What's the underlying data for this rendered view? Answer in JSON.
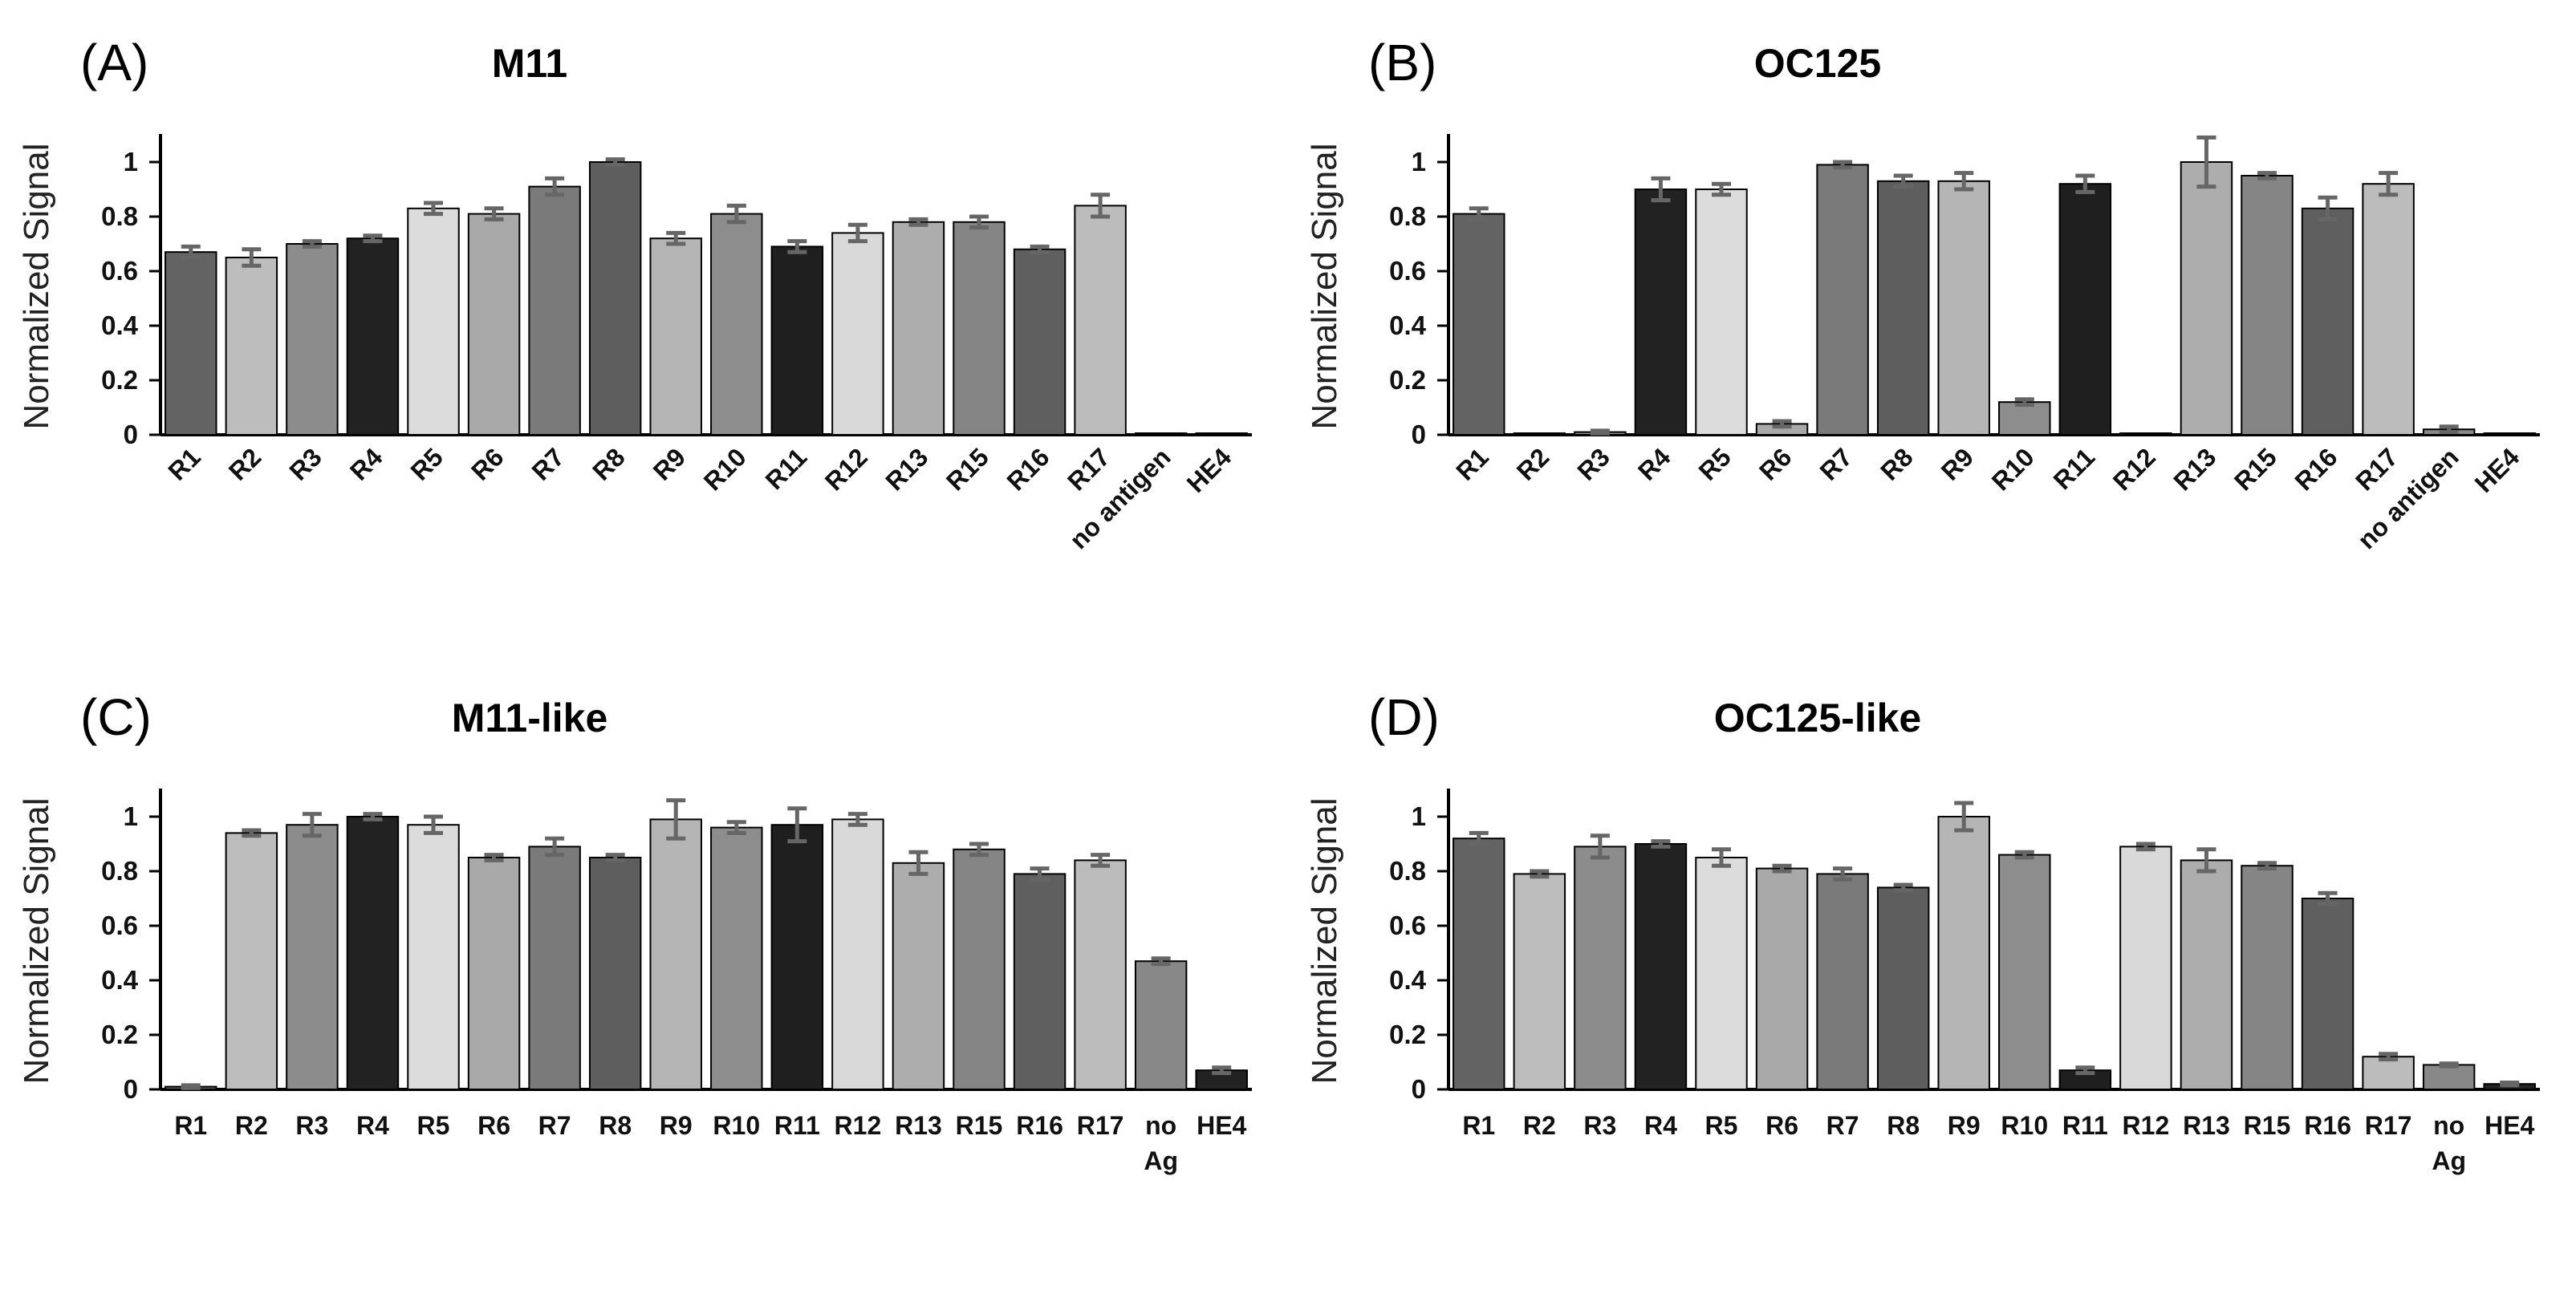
{
  "chart_data": [
    {
      "type": "bar",
      "panel_label": "(A)",
      "title": "M11",
      "ylabel": "Normalized Signal",
      "ylim": [
        0,
        1.1
      ],
      "yticks": [
        "0",
        "0.2",
        "0.4",
        "0.6",
        "0.8",
        "1"
      ],
      "xtick_rotated": true,
      "categories": [
        "R1",
        "R2",
        "R3",
        "R4",
        "R5",
        "R6",
        "R7",
        "R8",
        "R9",
        "R10",
        "R11",
        "R12",
        "R13",
        "R15",
        "R16",
        "R17",
        "no antigen",
        "HE4"
      ],
      "values": [
        0.67,
        0.65,
        0.7,
        0.72,
        0.83,
        0.81,
        0.91,
        1.0,
        0.72,
        0.81,
        0.69,
        0.74,
        0.78,
        0.78,
        0.68,
        0.84,
        0.005,
        0.005
      ],
      "errors": [
        0.02,
        0.03,
        0.01,
        0.01,
        0.02,
        0.02,
        0.03,
        0.01,
        0.02,
        0.03,
        0.02,
        0.03,
        0.01,
        0.02,
        0.01,
        0.04,
        0.0,
        0.0
      ],
      "colors": [
        "#636363",
        "#bdbdbd",
        "#8c8c8c",
        "#222222",
        "#dcdcdc",
        "#a9a9a9",
        "#7a7a7a",
        "#5e5e5e",
        "#b5b5b5",
        "#8d8d8d",
        "#1f1f1f",
        "#d9d9d9",
        "#adadad",
        "#858585",
        "#5f5f5f",
        "#bcbcbc",
        "#888888",
        "#222222"
      ]
    },
    {
      "type": "bar",
      "panel_label": "(B)",
      "title": "OC125",
      "ylabel": "Normalized Signal",
      "ylim": [
        0,
        1.1
      ],
      "yticks": [
        "0",
        "0.2",
        "0.4",
        "0.6",
        "0.8",
        "1"
      ],
      "xtick_rotated": true,
      "categories": [
        "R1",
        "R2",
        "R3",
        "R4",
        "R5",
        "R6",
        "R7",
        "R8",
        "R9",
        "R10",
        "R11",
        "R12",
        "R13",
        "R15",
        "R16",
        "R17",
        "no antigen",
        "HE4"
      ],
      "values": [
        0.81,
        0.005,
        0.01,
        0.9,
        0.9,
        0.04,
        0.99,
        0.93,
        0.93,
        0.12,
        0.92,
        0.005,
        1.0,
        0.95,
        0.83,
        0.92,
        0.02,
        0.005
      ],
      "errors": [
        0.02,
        0.0,
        0.005,
        0.04,
        0.02,
        0.01,
        0.01,
        0.02,
        0.03,
        0.01,
        0.03,
        0.0,
        0.09,
        0.01,
        0.04,
        0.04,
        0.01,
        0.0
      ],
      "colors": [
        "#636363",
        "#bdbdbd",
        "#8c8c8c",
        "#222222",
        "#dcdcdc",
        "#a9a9a9",
        "#7a7a7a",
        "#5e5e5e",
        "#b5b5b5",
        "#8d8d8d",
        "#1f1f1f",
        "#d9d9d9",
        "#adadad",
        "#858585",
        "#5f5f5f",
        "#bcbcbc",
        "#888888",
        "#222222"
      ]
    },
    {
      "type": "bar",
      "panel_label": "(C)",
      "title": "M11-like",
      "ylabel": "Normalized Signal",
      "ylim": [
        0,
        1.1
      ],
      "yticks": [
        "0",
        "0.2",
        "0.4",
        "0.6",
        "0.8",
        "1"
      ],
      "xtick_rotated": false,
      "categories": [
        "R1",
        "R2",
        "R3",
        "R4",
        "R5",
        "R6",
        "R7",
        "R8",
        "R9",
        "R10",
        "R11",
        "R12",
        "R13",
        "R15",
        "R16",
        "R17",
        "no\nAg",
        "HE4"
      ],
      "values": [
        0.01,
        0.94,
        0.97,
        1.0,
        0.97,
        0.85,
        0.89,
        0.85,
        0.99,
        0.96,
        0.97,
        0.99,
        0.83,
        0.88,
        0.79,
        0.84,
        0.47,
        0.07
      ],
      "errors": [
        0.005,
        0.01,
        0.04,
        0.01,
        0.03,
        0.01,
        0.03,
        0.01,
        0.07,
        0.02,
        0.06,
        0.02,
        0.04,
        0.02,
        0.02,
        0.02,
        0.01,
        0.01
      ],
      "colors": [
        "#636363",
        "#bdbdbd",
        "#8c8c8c",
        "#222222",
        "#dcdcdc",
        "#a9a9a9",
        "#7a7a7a",
        "#5e5e5e",
        "#b5b5b5",
        "#8d8d8d",
        "#1f1f1f",
        "#d9d9d9",
        "#adadad",
        "#858585",
        "#5f5f5f",
        "#bcbcbc",
        "#888888",
        "#222222"
      ]
    },
    {
      "type": "bar",
      "panel_label": "(D)",
      "title": "OC125-like",
      "ylabel": "Normalized Signal",
      "ylim": [
        0,
        1.1
      ],
      "yticks": [
        "0",
        "0.2",
        "0.4",
        "0.6",
        "0.8",
        "1"
      ],
      "xtick_rotated": false,
      "categories": [
        "R1",
        "R2",
        "R3",
        "R4",
        "R5",
        "R6",
        "R7",
        "R8",
        "R9",
        "R10",
        "R11",
        "R12",
        "R13",
        "R15",
        "R16",
        "R17",
        "no\nAg",
        "HE4"
      ],
      "values": [
        0.92,
        0.79,
        0.89,
        0.9,
        0.85,
        0.81,
        0.79,
        0.74,
        1.0,
        0.86,
        0.07,
        0.89,
        0.84,
        0.82,
        0.7,
        0.12,
        0.09,
        0.02
      ],
      "errors": [
        0.02,
        0.01,
        0.04,
        0.01,
        0.03,
        0.01,
        0.02,
        0.01,
        0.05,
        0.01,
        0.01,
        0.01,
        0.04,
        0.01,
        0.02,
        0.01,
        0.005,
        0.005
      ],
      "colors": [
        "#636363",
        "#bdbdbd",
        "#8c8c8c",
        "#222222",
        "#dcdcdc",
        "#a9a9a9",
        "#7a7a7a",
        "#5e5e5e",
        "#b5b5b5",
        "#8d8d8d",
        "#1f1f1f",
        "#d9d9d9",
        "#adadad",
        "#858585",
        "#5f5f5f",
        "#bcbcbc",
        "#888888",
        "#222222"
      ]
    }
  ]
}
